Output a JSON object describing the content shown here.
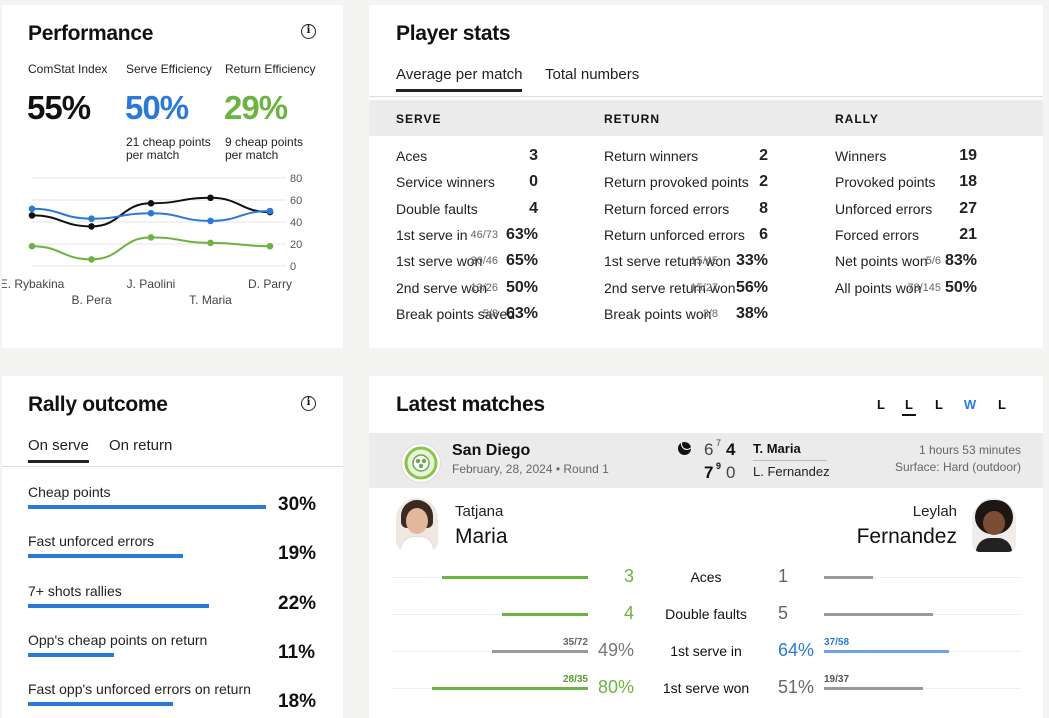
{
  "performance": {
    "title": "Performance",
    "info_icon": "info-icon",
    "metrics": [
      {
        "label": "ComStat Index",
        "value": "55%",
        "sub": "",
        "color": "#111111"
      },
      {
        "label": "Serve Efficiency",
        "value": "50%",
        "sub": "21 cheap points per match",
        "color": "#2a7ad5"
      },
      {
        "label": "Return Efficiency",
        "value": "29%",
        "sub": "9 cheap points per match",
        "color": "#6db33f"
      }
    ],
    "chart_data": {
      "type": "line",
      "categories": [
        "E. Rybakina",
        "B. Pera",
        "J. Paolini",
        "T. Maria",
        "D. Parry"
      ],
      "yticks": [
        "80",
        "60",
        "40",
        "20",
        "0"
      ],
      "ylim": [
        0,
        80
      ],
      "series": [
        {
          "color": "#111111",
          "values": [
            46,
            36,
            57,
            62,
            49
          ]
        },
        {
          "color": "#2a7ad5",
          "values": [
            52,
            43,
            48,
            41,
            50
          ]
        },
        {
          "color": "#6db33f",
          "values": [
            18,
            6,
            26,
            21,
            18
          ]
        }
      ]
    }
  },
  "player_stats": {
    "title": "Player stats",
    "tabs": [
      "Average per match",
      "Total numbers"
    ],
    "sections": [
      {
        "label": "SERVE",
        "rows": [
          {
            "name": "Aces",
            "frac": "",
            "value": "3"
          },
          {
            "name": "Service winners",
            "frac": "",
            "value": "0"
          },
          {
            "name": "Double faults",
            "frac": "",
            "value": "4"
          },
          {
            "name": "1st serve in",
            "frac": "46/73",
            "value": "63%"
          },
          {
            "name": "1st serve won",
            "frac": "30/46",
            "value": "65%"
          },
          {
            "name": "2nd serve won",
            "frac": "13/26",
            "value": "50%"
          },
          {
            "name": "Break points saved",
            "frac": "5/8",
            "value": "63%"
          }
        ]
      },
      {
        "label": "RETURN",
        "rows": [
          {
            "name": "Return winners",
            "frac": "",
            "value": "2"
          },
          {
            "name": "Return provoked points",
            "frac": "",
            "value": "2"
          },
          {
            "name": "Return forced errors",
            "frac": "",
            "value": "8"
          },
          {
            "name": "Return unforced errors",
            "frac": "",
            "value": "6"
          },
          {
            "name": "1st serve return won",
            "frac": "15/45",
            "value": "33%"
          },
          {
            "name": "2nd serve return won",
            "frac": "15/27",
            "value": "56%"
          },
          {
            "name": "Break points won",
            "frac": "3/8",
            "value": "38%"
          }
        ]
      },
      {
        "label": "RALLY",
        "rows": [
          {
            "name": "Winners",
            "frac": "",
            "value": "19"
          },
          {
            "name": "Provoked points",
            "frac": "",
            "value": "18"
          },
          {
            "name": "Unforced errors",
            "frac": "",
            "value": "27"
          },
          {
            "name": "Forced errors",
            "frac": "",
            "value": "21"
          },
          {
            "name": "Net points won",
            "frac": "5/6",
            "value": "83%"
          },
          {
            "name": "All points won",
            "frac": "73/145",
            "value": "50%"
          }
        ]
      }
    ]
  },
  "rally_outcome": {
    "title": "Rally outcome",
    "info_icon": "info-icon",
    "tabs": [
      "On serve",
      "On return"
    ],
    "items": [
      {
        "label": "Cheap points",
        "value": "30%",
        "fill": 1.0
      },
      {
        "label": "Fast unforced errors",
        "value": "19%",
        "fill": 0.65
      },
      {
        "label": "7+ shots rallies",
        "value": "22%",
        "fill": 0.76
      },
      {
        "label": "Opp's cheap points on return",
        "value": "11%",
        "fill": 0.36
      },
      {
        "label": "Fast opp's unforced errors on return",
        "value": "18%",
        "fill": 0.61
      }
    ]
  },
  "latest_matches": {
    "title": "Latest matches",
    "form": [
      {
        "r": "L",
        "active": false,
        "color": "#111111"
      },
      {
        "r": "L",
        "active": true,
        "color": "#111111"
      },
      {
        "r": "L",
        "active": false,
        "color": "#111111"
      },
      {
        "r": "W",
        "active": false,
        "color": "#2a7ad5"
      },
      {
        "r": "L",
        "active": false,
        "color": "#111111"
      }
    ],
    "match": {
      "tournament": "San Diego",
      "date_round": "February, 28, 2024 • Round 1",
      "p1_set1": "6",
      "p1_set1_tb": "7",
      "p1_set2": "4",
      "p1": "T. Maria",
      "p2_set1": "7",
      "p2_set1_tb": "9",
      "p2_set2": "0",
      "p2": "L. Fernandez",
      "duration": "1 hours 53 minutes",
      "surface": "Surface: Hard (outdoor)"
    },
    "player_left": {
      "first": "Tatjana",
      "last": "Maria"
    },
    "player_right": {
      "first": "Leylah",
      "last": "Fernandez"
    },
    "comparison": [
      {
        "name": "Aces",
        "left": "3",
        "left_frac": "",
        "right": "1",
        "right_frac": "",
        "left_fill": 0.75,
        "right_fill": 0.25,
        "left_color": "#6db33f",
        "right_color": "#999999",
        "left_text_color": "#6db33f",
        "right_text_color": "#666666"
      },
      {
        "name": "Double faults",
        "left": "4",
        "left_frac": "",
        "right": "5",
        "right_frac": "",
        "left_fill": 0.44,
        "right_fill": 0.56,
        "left_color": "#6db33f",
        "right_color": "#999999",
        "left_text_color": "#6db33f",
        "right_text_color": "#666666"
      },
      {
        "name": "1st serve in",
        "left": "49%",
        "left_frac": "35/72",
        "right": "64%",
        "right_frac": "37/58",
        "left_fill": 0.49,
        "right_fill": 0.64,
        "left_color": "#999999",
        "right_color": "#6fa3e6",
        "left_text_color": "#777777",
        "right_text_color": "#2a7ad5"
      },
      {
        "name": "1st serve won",
        "left": "80%",
        "left_frac": "28/35",
        "right": "51%",
        "right_frac": "19/37",
        "left_fill": 0.8,
        "right_fill": 0.51,
        "left_color": "#6db33f",
        "right_color": "#999999",
        "left_text_color": "#6db33f",
        "right_text_color": "#666666"
      }
    ]
  }
}
